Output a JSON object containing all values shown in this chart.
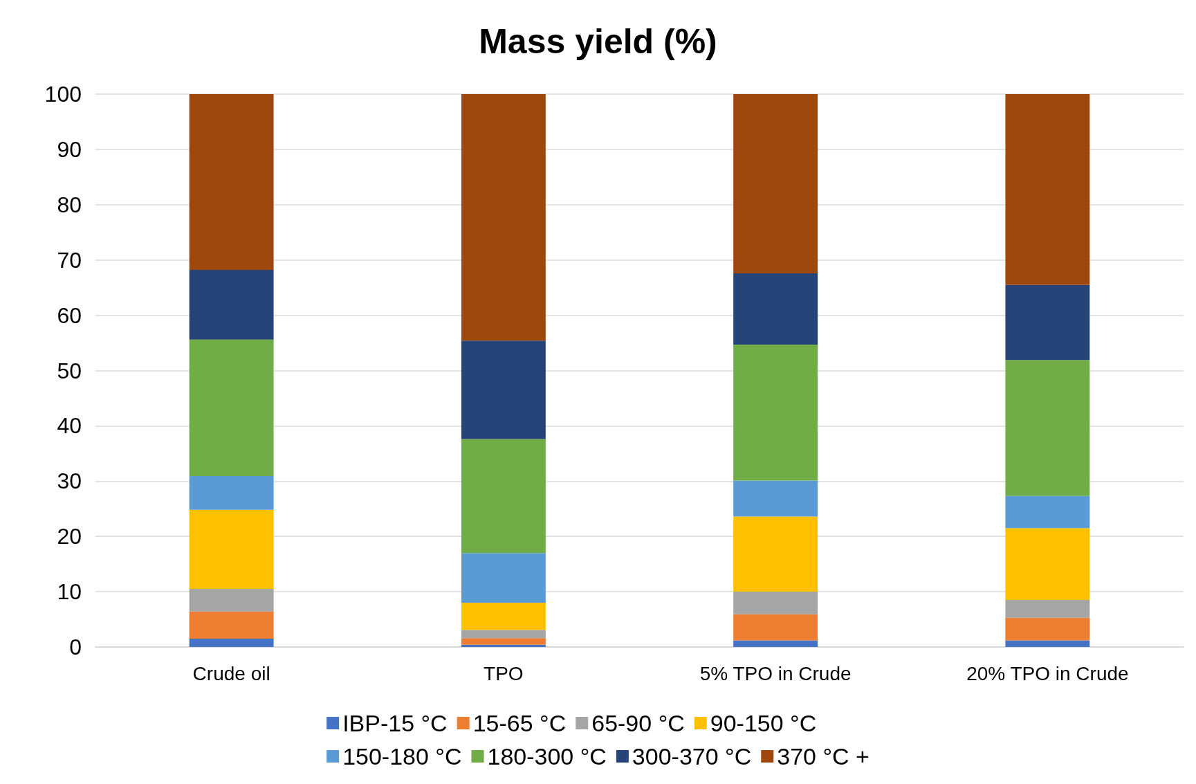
{
  "chart_data": {
    "type": "bar",
    "title": "Mass yield (%)",
    "stacked": true,
    "grid": "y",
    "legend": "bottom",
    "ylim": [
      0,
      100
    ],
    "yticks": [
      0,
      10,
      20,
      30,
      40,
      50,
      60,
      70,
      80,
      90,
      100
    ],
    "categories": [
      "Crude oil",
      "TPO",
      "5% TPO in Crude",
      "20% TPO in Crude"
    ],
    "series": [
      {
        "name": "IBP-15 °C",
        "color": "#4472c4",
        "values": [
          1.5,
          0.4,
          1.2,
          1.2
        ]
      },
      {
        "name": "15-65 °C",
        "color": "#ed7d31",
        "values": [
          4.9,
          1.2,
          4.7,
          4.1
        ]
      },
      {
        "name": "65-90 °C",
        "color": "#a5a5a5",
        "values": [
          4.1,
          1.5,
          4.1,
          3.2
        ]
      },
      {
        "name": "90-150 °C",
        "color": "#ffc000",
        "values": [
          14.3,
          4.9,
          13.6,
          13.0
        ]
      },
      {
        "name": "150-180 °C",
        "color": "#5b9bd5",
        "values": [
          6.1,
          9.0,
          6.5,
          5.8
        ]
      },
      {
        "name": "180-300 °C",
        "color": "#70ad47",
        "values": [
          24.7,
          20.6,
          24.6,
          24.6
        ]
      },
      {
        "name": "300-370 °C",
        "color": "#264478",
        "values": [
          12.6,
          17.8,
          12.9,
          13.6
        ]
      },
      {
        "name": "370 °C +",
        "color": "#9e480e",
        "values": [
          31.8,
          44.6,
          32.4,
          34.5
        ]
      }
    ]
  }
}
